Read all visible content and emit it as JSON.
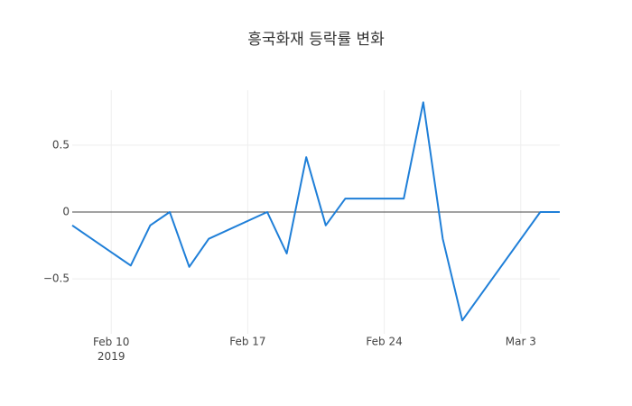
{
  "chart_data": {
    "type": "line",
    "title": "흥국화재 등락률 변화",
    "x": [
      "2019-02-08",
      "2019-02-11",
      "2019-02-12",
      "2019-02-13",
      "2019-02-14",
      "2019-02-15",
      "2019-02-18",
      "2019-02-19",
      "2019-02-20",
      "2019-02-21",
      "2019-02-22",
      "2019-02-25",
      "2019-02-26",
      "2019-02-27",
      "2019-02-28",
      "2019-03-04",
      "2019-03-05"
    ],
    "series": [
      {
        "name": "등락률",
        "color": "#1f7fd8",
        "values": [
          -0.1,
          -0.4,
          -0.1,
          0,
          -0.41,
          -0.2,
          0,
          -0.31,
          0.41,
          -0.1,
          0.1,
          0.1,
          0.82,
          -0.2,
          -0.81,
          0,
          0
        ]
      }
    ],
    "xlim": [
      "2019-02-08",
      "2019-03-05"
    ],
    "xticks": [
      {
        "value": "2019-02-10",
        "label": "Feb 10\n2019"
      },
      {
        "value": "2019-02-17",
        "label": "Feb 17"
      },
      {
        "value": "2019-02-24",
        "label": "Feb 24"
      },
      {
        "value": "2019-03-03",
        "label": "Mar 3"
      }
    ],
    "ylim": [
      -0.91,
      0.91
    ],
    "yticks": [
      {
        "value": -0.5,
        "label": "−0.5"
      },
      0,
      0.5
    ],
    "grid": true
  }
}
